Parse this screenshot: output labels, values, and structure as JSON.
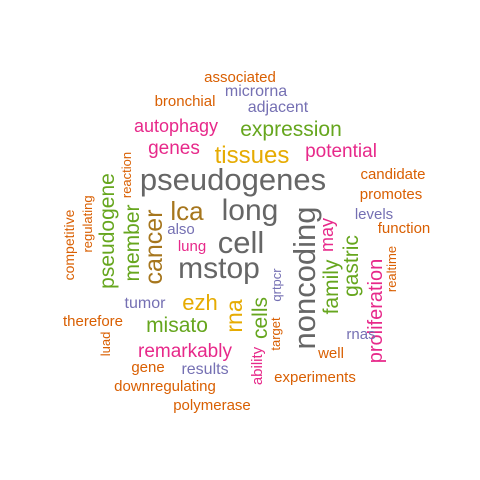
{
  "colors": {
    "orange": "#D95F02",
    "purple": "#7570B3",
    "magenta": "#E7298A",
    "green": "#66A61E",
    "gold": "#E6AB02",
    "brown": "#A6761D",
    "gray": "#666666"
  },
  "words": [
    {
      "text": "associated",
      "color": "orange",
      "rotated": false
    },
    {
      "text": "microrna",
      "color": "purple",
      "rotated": false
    },
    {
      "text": "bronchial",
      "color": "orange",
      "rotated": false
    },
    {
      "text": "adjacent",
      "color": "purple",
      "rotated": false
    },
    {
      "text": "autophagy",
      "color": "magenta",
      "rotated": false
    },
    {
      "text": "expression",
      "color": "green",
      "rotated": false
    },
    {
      "text": "genes",
      "color": "magenta",
      "rotated": false
    },
    {
      "text": "tissues",
      "color": "gold",
      "rotated": false
    },
    {
      "text": "potential",
      "color": "magenta",
      "rotated": false
    },
    {
      "text": "reaction",
      "color": "orange",
      "rotated": true
    },
    {
      "text": "pseudogenes",
      "color": "gray",
      "rotated": false
    },
    {
      "text": "candidate",
      "color": "orange",
      "rotated": false
    },
    {
      "text": "promotes",
      "color": "orange",
      "rotated": false
    },
    {
      "text": "pseudogene",
      "color": "green",
      "rotated": true
    },
    {
      "text": "regulating",
      "color": "orange",
      "rotated": true
    },
    {
      "text": "member",
      "color": "green",
      "rotated": true
    },
    {
      "text": "cancer",
      "color": "brown",
      "rotated": true
    },
    {
      "text": "lca",
      "color": "brown",
      "rotated": false
    },
    {
      "text": "long",
      "color": "gray",
      "rotated": false
    },
    {
      "text": "levels",
      "color": "purple",
      "rotated": false
    },
    {
      "text": "function",
      "color": "orange",
      "rotated": false
    },
    {
      "text": "competitive",
      "color": "orange",
      "rotated": true
    },
    {
      "text": "also",
      "color": "purple",
      "rotated": false
    },
    {
      "text": "cell",
      "color": "gray",
      "rotated": false
    },
    {
      "text": "noncoding",
      "color": "gray",
      "rotated": true
    },
    {
      "text": "may",
      "color": "magenta",
      "rotated": true
    },
    {
      "text": "gastric",
      "color": "green",
      "rotated": true
    },
    {
      "text": "lung",
      "color": "magenta",
      "rotated": false
    },
    {
      "text": "mstop",
      "color": "gray",
      "rotated": false
    },
    {
      "text": "family",
      "color": "green",
      "rotated": true
    },
    {
      "text": "realtime",
      "color": "orange",
      "rotated": true
    },
    {
      "text": "qrtpcr",
      "color": "purple",
      "rotated": true
    },
    {
      "text": "proliferation",
      "color": "magenta",
      "rotated": true
    },
    {
      "text": "tumor",
      "color": "purple",
      "rotated": false
    },
    {
      "text": "ezh",
      "color": "gold",
      "rotated": false
    },
    {
      "text": "cells",
      "color": "green",
      "rotated": true
    },
    {
      "text": "rna",
      "color": "gold",
      "rotated": true
    },
    {
      "text": "therefore",
      "color": "orange",
      "rotated": false
    },
    {
      "text": "misato",
      "color": "green",
      "rotated": false
    },
    {
      "text": "target",
      "color": "orange",
      "rotated": true
    },
    {
      "text": "rnas",
      "color": "purple",
      "rotated": false
    },
    {
      "text": "luad",
      "color": "orange",
      "rotated": true
    },
    {
      "text": "remarkably",
      "color": "magenta",
      "rotated": false
    },
    {
      "text": "well",
      "color": "orange",
      "rotated": false
    },
    {
      "text": "ability",
      "color": "magenta",
      "rotated": true
    },
    {
      "text": "gene",
      "color": "orange",
      "rotated": false
    },
    {
      "text": "results",
      "color": "purple",
      "rotated": false
    },
    {
      "text": "experiments",
      "color": "orange",
      "rotated": false
    },
    {
      "text": "downregulating",
      "color": "orange",
      "rotated": false
    },
    {
      "text": "polymerase",
      "color": "orange",
      "rotated": false
    }
  ]
}
